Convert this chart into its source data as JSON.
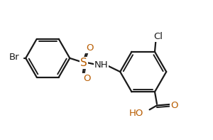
{
  "bg_color": "#ffffff",
  "line_color": "#1a1a1a",
  "bond_width": 1.6,
  "font_size": 9.5,
  "figsize": [
    3.0,
    1.97
  ],
  "dpi": 100,
  "br_color": "#1a1a1a",
  "cl_color": "#1a1a1a",
  "n_color": "#1a1a1a",
  "o_color": "#b85c00",
  "s_color": "#b85c00",
  "xlim": [
    0,
    10
  ],
  "ylim": [
    0,
    6.57
  ]
}
